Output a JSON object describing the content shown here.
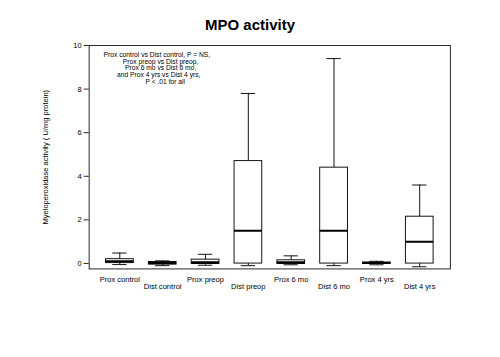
{
  "chart_data": {
    "type": "box",
    "title": "MPO activity",
    "ylabel": "Myeloperoxidase activity ( U/mg protein)",
    "categories": [
      "Prox control",
      "Dist control",
      "Prox preop",
      "Dist preop",
      "Prox 6 mo",
      "Dist 6 mo",
      "Prox 4 yrs",
      "Dist 4 yrs"
    ],
    "boxes": [
      {
        "q1": 0.02,
        "median": 0.1,
        "q3": 0.2,
        "whislo": -0.05,
        "whishi": 0.48
      },
      {
        "q1": -0.05,
        "median": 0.02,
        "q3": 0.07,
        "whislo": -0.1,
        "whishi": 0.12
      },
      {
        "q1": -0.02,
        "median": 0.05,
        "q3": 0.18,
        "whislo": -0.08,
        "whishi": 0.42
      },
      {
        "q1": 0.0,
        "median": 1.5,
        "q3": 4.7,
        "whislo": -0.1,
        "whishi": 7.8
      },
      {
        "q1": -0.02,
        "median": 0.05,
        "q3": 0.15,
        "whislo": -0.06,
        "whishi": 0.35
      },
      {
        "q1": 0.0,
        "median": 1.5,
        "q3": 4.4,
        "whislo": -0.1,
        "whishi": 9.4
      },
      {
        "q1": -0.02,
        "median": 0.02,
        "q3": 0.05,
        "whislo": -0.06,
        "whishi": 0.1
      },
      {
        "q1": 0.0,
        "median": 1.0,
        "q3": 2.15,
        "whislo": -0.15,
        "whishi": 3.6
      }
    ],
    "ylim": [
      -0.25,
      10
    ],
    "yticks": [
      0,
      2,
      4,
      6,
      8,
      10
    ],
    "annotation": "Prox control vs Dist control, P = NS,\n    Prox preop vs Dist preop,\n    Prox 6 mo vs Dist 6 mo,\n  and Prox 4 yrs vs Dist 4 yrs,\n         P < .01 for all",
    "grid": false
  }
}
